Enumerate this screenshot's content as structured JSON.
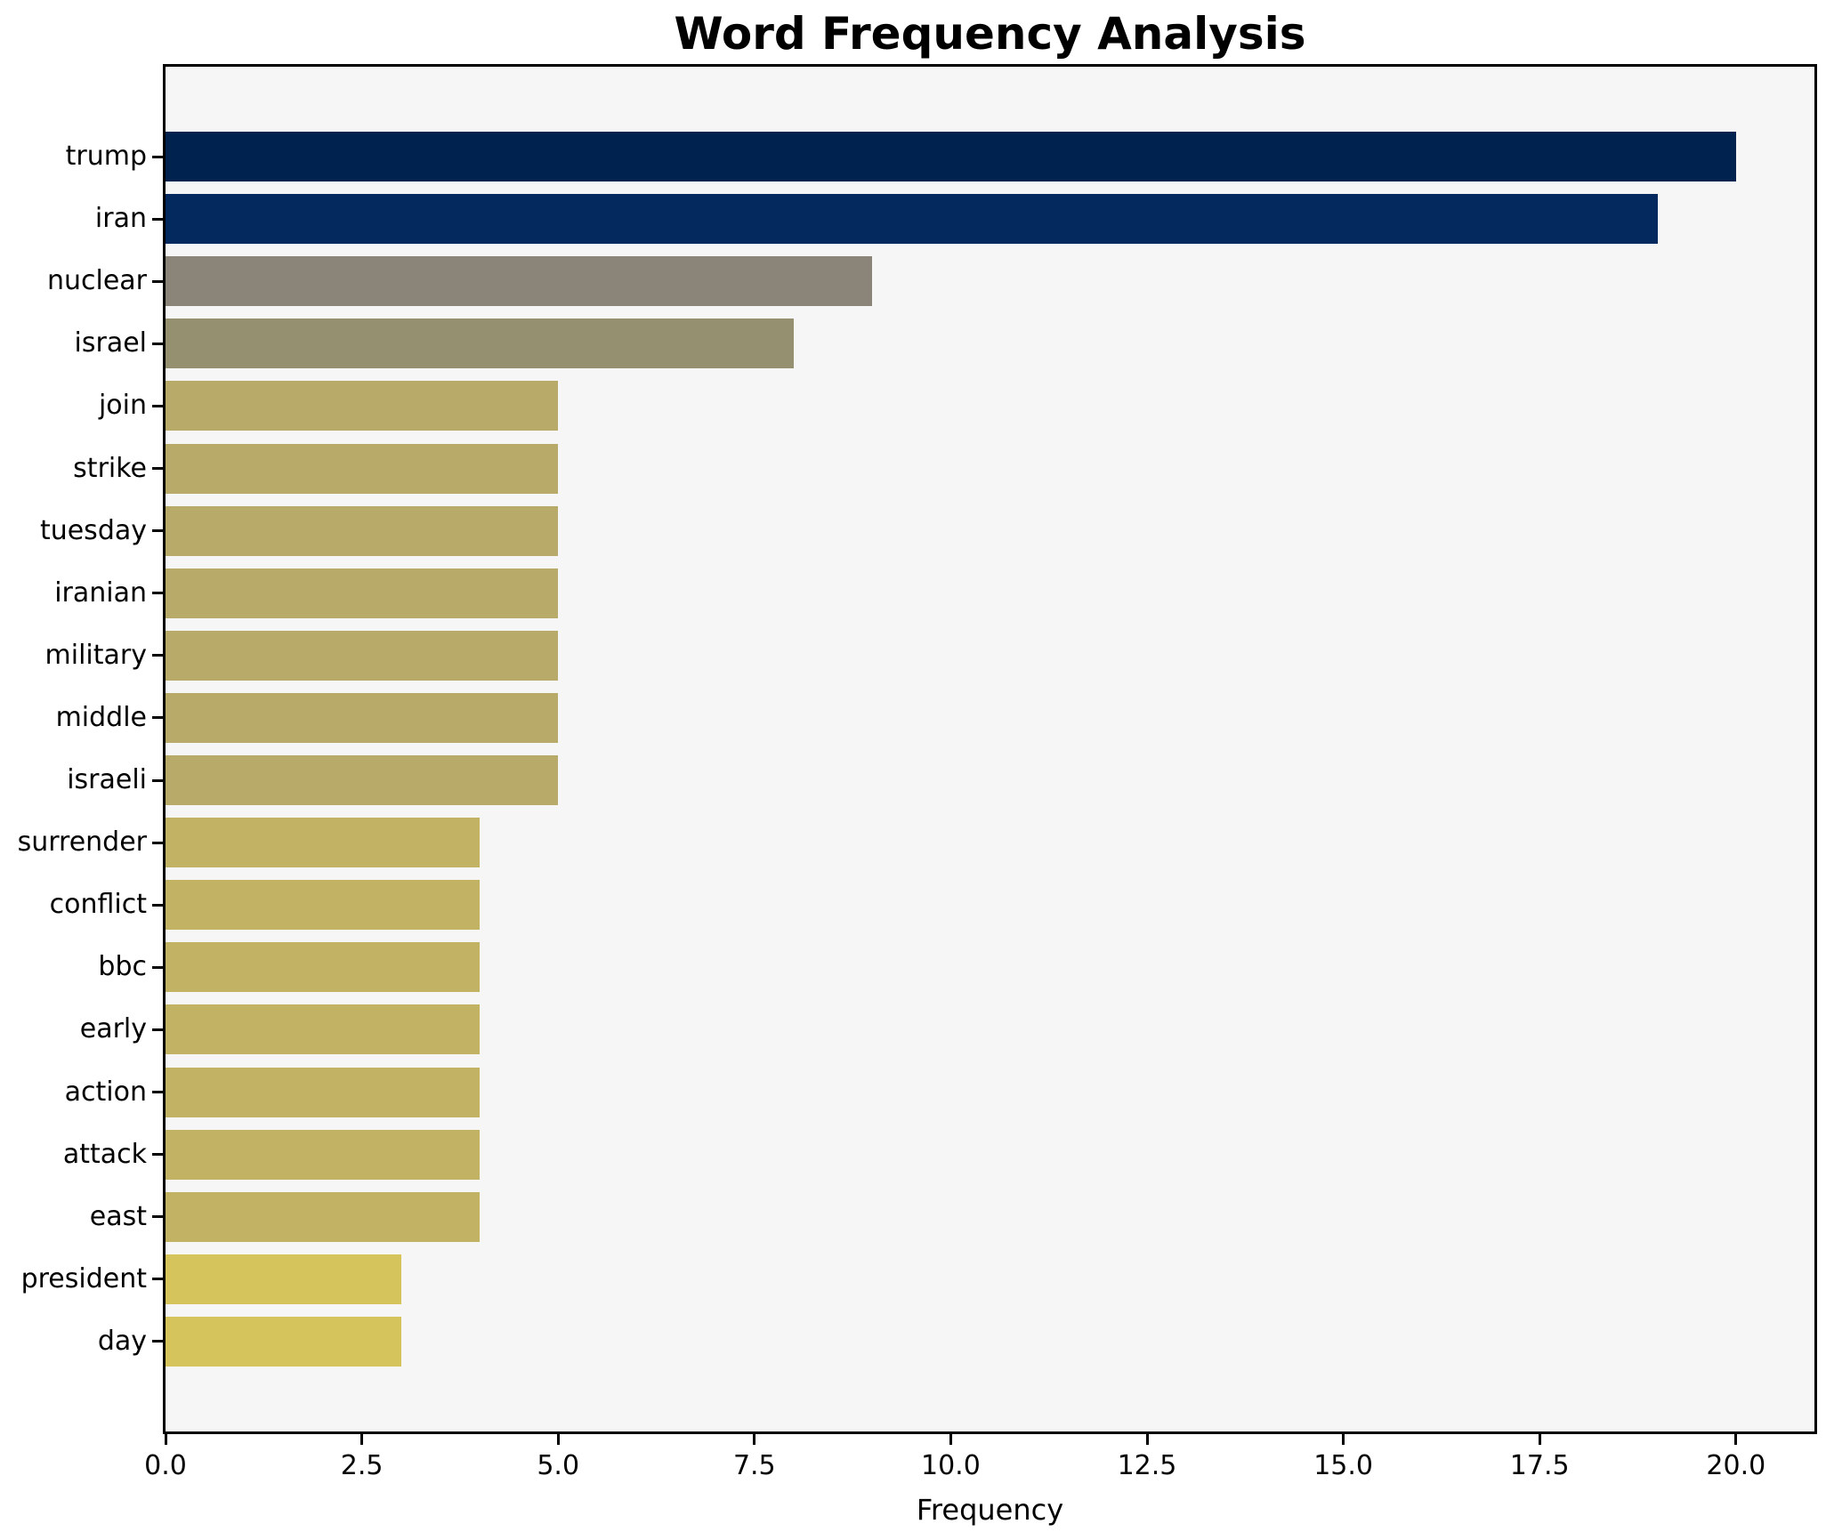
{
  "chart_data": {
    "type": "bar",
    "orientation": "horizontal",
    "title": "Word Frequency Analysis",
    "xlabel": "Frequency",
    "ylabel": "",
    "xlim": [
      0,
      21
    ],
    "x_tick_labels": [
      "0.0",
      "2.5",
      "5.0",
      "7.5",
      "10.0",
      "12.5",
      "15.0",
      "17.5",
      "20.0"
    ],
    "grid": false,
    "legend": "none",
    "categories": [
      "trump",
      "iran",
      "nuclear",
      "israel",
      "join",
      "strike",
      "tuesday",
      "iranian",
      "military",
      "middle",
      "israeli",
      "surrender",
      "conflict",
      "bbc",
      "early",
      "action",
      "attack",
      "east",
      "president",
      "day"
    ],
    "values": [
      20,
      19,
      9,
      8,
      5,
      5,
      5,
      5,
      5,
      5,
      5,
      4,
      4,
      4,
      4,
      4,
      4,
      4,
      3,
      3
    ],
    "bar_colors": [
      "#00224e",
      "#04295e",
      "#8a8578",
      "#949070",
      "#b8aa69",
      "#b8aa69",
      "#b8aa69",
      "#b8aa69",
      "#b8aa69",
      "#b8aa69",
      "#b8aa69",
      "#c2b264",
      "#c2b264",
      "#c2b264",
      "#c2b264",
      "#c2b264",
      "#c2b264",
      "#c2b264",
      "#d5c35c",
      "#d5c35c"
    ],
    "colors": {
      "plot_background": "#f6f6f6",
      "figure_background": "#ffffff",
      "spine": "#000000",
      "text": "#000000"
    }
  }
}
